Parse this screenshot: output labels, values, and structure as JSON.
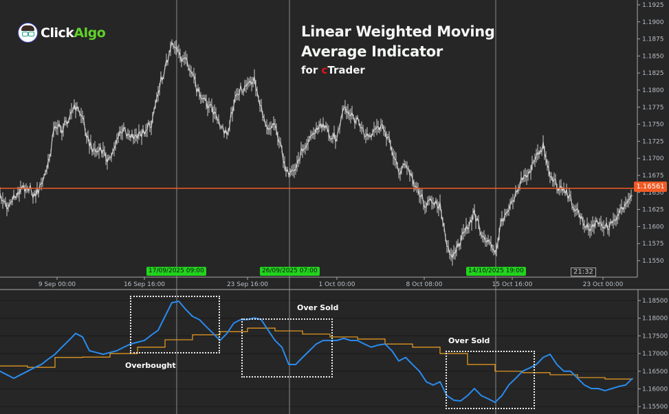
{
  "branding": {
    "logo_left": "Click",
    "logo_right": "Algo"
  },
  "overlay": {
    "title_line1": "Linear Weighted Moving",
    "title_line2": "Average Indicator",
    "sub_prefix": "for ",
    "sub_c": "c",
    "sub_rest": "Trader"
  },
  "annotations": {
    "overbought": "Overbought",
    "oversold_1": "Over Sold",
    "oversold_2": "Over Sold"
  },
  "current_price_label": "1.16561",
  "time_label": "21:32",
  "marker_badges": [
    "17/09/2025 09:00",
    "26/09/2025 07:00",
    "14/10/2025 19:00"
  ],
  "colors": {
    "price": "#d0d0d0",
    "current_price_line": "#f15a24",
    "fast_lwma": "#2a8cf0",
    "slow_lwma": "#f0a020",
    "badge": "#22d31e",
    "background": "#262626"
  },
  "chart_data": [
    {
      "type": "line",
      "title": "",
      "x_range": [
        "2025-09-04 10:00",
        "2025-10-25 07:00"
      ],
      "x_ticks": [
        "9 Sep 00:00",
        "16 Sep 16:00",
        "23 Sep 16:00",
        "1 Oct 00:00",
        "8 Oct 08:00",
        "15 Oct 16:00",
        "23 Oct 00:00"
      ],
      "y_ticks": [
        "1.1925",
        "1.1900",
        "1.1875",
        "1.1850",
        "1.1825",
        "1.1800",
        "1.1775",
        "1.1750",
        "1.1725",
        "1.1700",
        "1.1675",
        "1.1650",
        "1.1625",
        "1.1600",
        "1.1575",
        "1.1550"
      ],
      "ylim": [
        1.153,
        1.1935
      ],
      "current_price": 1.16561,
      "series": [
        {
          "values": [
            1.1645,
            1.163,
            1.164,
            1.1655,
            1.166,
            1.1645,
            1.166,
            1.169,
            1.1751,
            1.1741,
            1.1761,
            1.1776,
            1.1761,
            1.172,
            1.171,
            1.171,
            1.1695,
            1.173,
            1.1741,
            1.1735,
            1.173,
            1.1741,
            1.1751,
            1.1801,
            1.1831,
            1.1872,
            1.1851,
            1.1841,
            1.1821,
            1.1791,
            1.1781,
            1.1771,
            1.1746,
            1.1735,
            1.1781,
            1.1801,
            1.1806,
            1.1816,
            1.1771,
            1.1746,
            1.1751,
            1.171,
            1.167,
            1.1685,
            1.1715,
            1.173,
            1.1741,
            1.1751,
            1.1735,
            1.173,
            1.1771,
            1.1761,
            1.1756,
            1.1735,
            1.173,
            1.1746,
            1.1741,
            1.1715,
            1.168,
            1.169,
            1.167,
            1.165,
            1.163,
            1.164,
            1.163,
            1.1569,
            1.1559,
            1.1579,
            1.1599,
            1.162,
            1.1589,
            1.1579,
            1.1559,
            1.161,
            1.163,
            1.165,
            1.167,
            1.168,
            1.17,
            1.172,
            1.1675,
            1.166,
            1.1655,
            1.164,
            1.162,
            1.1604,
            1.1599,
            1.161,
            1.1599,
            1.1604,
            1.162,
            1.163,
            1.1645
          ]
        }
      ]
    },
    {
      "type": "line",
      "title": "",
      "x_range": [
        "2025-09-04 10:00",
        "2025-10-25 07:00"
      ],
      "y_ticks": [
        "1.18500",
        "1.18000",
        "1.17500",
        "1.17000",
        "1.16500",
        "1.16000",
        "1.15500"
      ],
      "ylim": [
        1.153,
        1.1875
      ],
      "series": [
        {
          "values": [
            1.165,
            1.164,
            1.163,
            1.164,
            1.165,
            1.166,
            1.1669,
            1.1684,
            1.1698,
            1.1718,
            1.1737,
            1.1757,
            1.1747,
            1.1708,
            1.1703,
            1.1698,
            1.1703,
            1.1708,
            1.1718,
            1.1727,
            1.1732,
            1.1737,
            1.1752,
            1.1766,
            1.1805,
            1.1844,
            1.1848,
            1.1825,
            1.1805,
            1.1796,
            1.1776,
            1.1757,
            1.1737,
            1.1757,
            1.1786,
            1.1796,
            1.1796,
            1.1801,
            1.1796,
            1.1766,
            1.1737,
            1.1718,
            1.1669,
            1.1669,
            1.1689,
            1.1708,
            1.1727,
            1.1737,
            1.1737,
            1.1737,
            1.1743,
            1.1737,
            1.1737,
            1.1727,
            1.1718,
            1.1724,
            1.1727,
            1.1708,
            1.1679,
            1.1689,
            1.1669,
            1.165,
            1.162,
            1.1611,
            1.162,
            1.1581,
            1.1568,
            1.1566,
            1.1581,
            1.1601,
            1.1581,
            1.1572,
            1.1562,
            1.1581,
            1.1611,
            1.163,
            1.165,
            1.1659,
            1.1669,
            1.1689,
            1.1698,
            1.1669,
            1.165,
            1.165,
            1.163,
            1.1611,
            1.1601,
            1.1601,
            1.1595,
            1.1601,
            1.1607,
            1.1611,
            1.163
          ]
        },
        {
          "values": [
            1.1665,
            1.1661,
            1.1689,
            1.169,
            1.17,
            1.1718,
            1.1739,
            1.1753,
            1.1762,
            1.1772,
            1.1764,
            1.1755,
            1.1747,
            1.1741,
            1.1727,
            1.1718,
            1.17,
            1.1669,
            1.165,
            1.1646,
            1.164,
            1.1632,
            1.1628,
            1.163
          ]
        }
      ]
    }
  ]
}
